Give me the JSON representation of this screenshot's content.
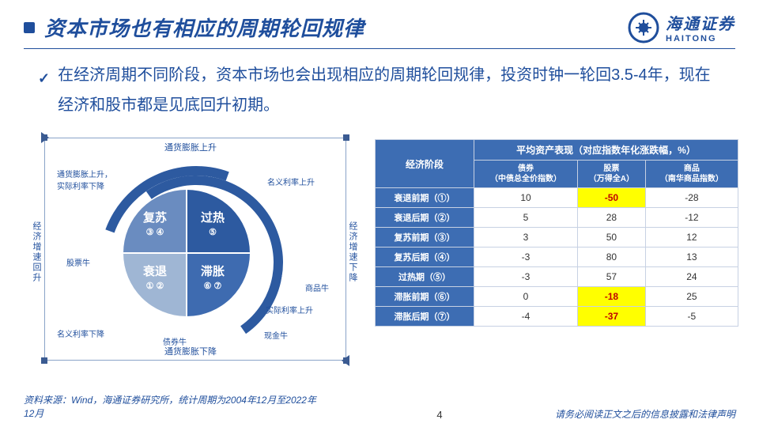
{
  "header": {
    "title": "资本市场也有相应的周期轮回规律",
    "logo_cn": "海通证券",
    "logo_en": "HAITONG"
  },
  "bullet": {
    "text": "在经济周期不同阶段，资本市场也会出现相应的周期轮回规律，投资时钟一轮回3.5-4年，现在经济和股市都是见底回升初期。"
  },
  "diagram": {
    "top_bar": "通货膨胀上升",
    "bottom_bar": "通货膨胀下降",
    "left_side": "经济增速回升",
    "right_side": "经济增速下降",
    "quads": {
      "tr": "过热",
      "br": "滞胀",
      "bl": "衰退",
      "tl": "复苏",
      "n_tr": "⑤",
      "n_br": "⑥ ⑦",
      "n_bl": "① ②",
      "n_tl": "③ ④"
    },
    "ann_tl1": "通货膨胀上升，",
    "ann_tl2": "实际利率下降",
    "ann_tr": "名义利率上升",
    "ann_left": "股票牛",
    "ann_right": "商品牛",
    "ann_bl": "名义利率下降",
    "ann_bc": "债券牛",
    "ann_br1": "现金牛",
    "ann_br2": "实际利率上升"
  },
  "table": {
    "h1": "经济阶段",
    "h2": "平均资产表现（对应指数年化涨跌幅，%）",
    "sub1": "债券\n（中债总全价指数）",
    "sub2": "股票\n（万得全A）",
    "sub3": "商品\n（南华商品指数）",
    "rows": [
      {
        "label": "衰退前期（①）",
        "v": [
          {
            "t": "10"
          },
          {
            "t": "-50",
            "hl": true
          },
          {
            "t": "-28"
          }
        ]
      },
      {
        "label": "衰退后期（②）",
        "v": [
          {
            "t": "5"
          },
          {
            "t": "28"
          },
          {
            "t": "-12"
          }
        ]
      },
      {
        "label": "复苏前期（③）",
        "v": [
          {
            "t": "3"
          },
          {
            "t": "50"
          },
          {
            "t": "12"
          }
        ]
      },
      {
        "label": "复苏后期（④）",
        "v": [
          {
            "t": "-3"
          },
          {
            "t": "80"
          },
          {
            "t": "13"
          }
        ]
      },
      {
        "label": "过热期（⑤）",
        "v": [
          {
            "t": "-3"
          },
          {
            "t": "57"
          },
          {
            "t": "24"
          }
        ]
      },
      {
        "label": "滞胀前期（⑥）",
        "v": [
          {
            "t": "0"
          },
          {
            "t": "-18",
            "hl": true
          },
          {
            "t": "25"
          }
        ]
      },
      {
        "label": "滞胀后期（⑦）",
        "v": [
          {
            "t": "-4"
          },
          {
            "t": "-37",
            "hl": true
          },
          {
            "t": "-5"
          }
        ]
      }
    ]
  },
  "footer": {
    "source": "资料来源：Wind，海通证券研究所，统计周期为2004年12月至2022年12月",
    "page": "4",
    "disclaimer": "请务必阅读正文之后的信息披露和法律声明"
  }
}
